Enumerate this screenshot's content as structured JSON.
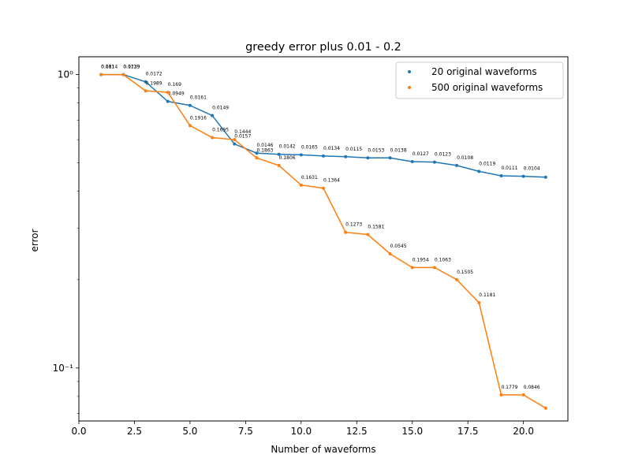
{
  "chart_data": {
    "type": "line",
    "title": "greedy error plus 0.01 - 0.2",
    "xlabel": "Number of waveforms",
    "ylabel": "error",
    "x_scale": "linear",
    "y_scale": "log",
    "xlim": [
      0,
      22
    ],
    "ylim": [
      0.066,
      1.15
    ],
    "xticks": [
      0.0,
      2.5,
      5.0,
      7.5,
      10.0,
      12.5,
      15.0,
      17.5,
      20.0
    ],
    "xtick_labels": [
      "0.0",
      "2.5",
      "5.0",
      "7.5",
      "10.0",
      "12.5",
      "15.0",
      "17.5",
      "20.0"
    ],
    "yticks": [
      0.1,
      1.0
    ],
    "ytick_labels": [
      "10⁻¹",
      "10⁰"
    ],
    "grid": false,
    "legend_position": "top-right",
    "series": [
      {
        "name": "20 original waveforms",
        "color": "#1f77b4",
        "x": [
          1,
          2,
          3,
          4,
          5,
          6,
          7,
          8,
          9,
          10,
          11,
          12,
          13,
          14,
          15,
          16,
          17,
          18,
          19,
          20,
          21
        ],
        "y": [
          1.0,
          1.0,
          0.945,
          0.81,
          0.785,
          0.725,
          0.58,
          0.54,
          0.535,
          0.533,
          0.528,
          0.525,
          0.52,
          0.52,
          0.505,
          0.503,
          0.49,
          0.468,
          0.452,
          0.45,
          0.447
        ],
        "labels": [
          "0.011",
          "0.0139",
          "0.0172",
          "0.0949",
          "0.0161",
          "0.0149",
          "0.0157",
          "0.0146",
          "0.0142",
          "0.0165",
          "0.0134",
          "0.0115",
          "0.0153",
          "0.0138",
          "0.0127",
          "0.0123",
          "0.0108",
          "0.0119",
          "0.0111",
          "0.0104",
          ""
        ]
      },
      {
        "name": "500 original waveforms",
        "color": "#ff7f0e",
        "x": [
          1,
          2,
          3,
          4,
          5,
          6,
          7,
          8,
          9,
          10,
          11,
          12,
          13,
          14,
          15,
          16,
          17,
          18,
          19,
          20,
          21
        ],
        "y": [
          1.0,
          1.0,
          0.88,
          0.87,
          0.67,
          0.61,
          0.6,
          0.52,
          0.49,
          0.42,
          0.41,
          0.29,
          0.285,
          0.245,
          0.22,
          0.22,
          0.2,
          0.167,
          0.081,
          0.081,
          0.073
        ],
        "labels": [
          "0.1814",
          "0.1729",
          "0.1989",
          "0.169",
          "0.1916",
          "0.1695",
          "0.1444",
          "0.1863",
          "0.1806",
          "0.1631",
          "0.1364",
          "0.1273",
          "0.1581",
          "0.0545",
          "0.1954",
          "0.1063",
          "0.1505",
          "0.1181",
          "0.1779",
          "0.0846",
          ""
        ]
      }
    ]
  }
}
